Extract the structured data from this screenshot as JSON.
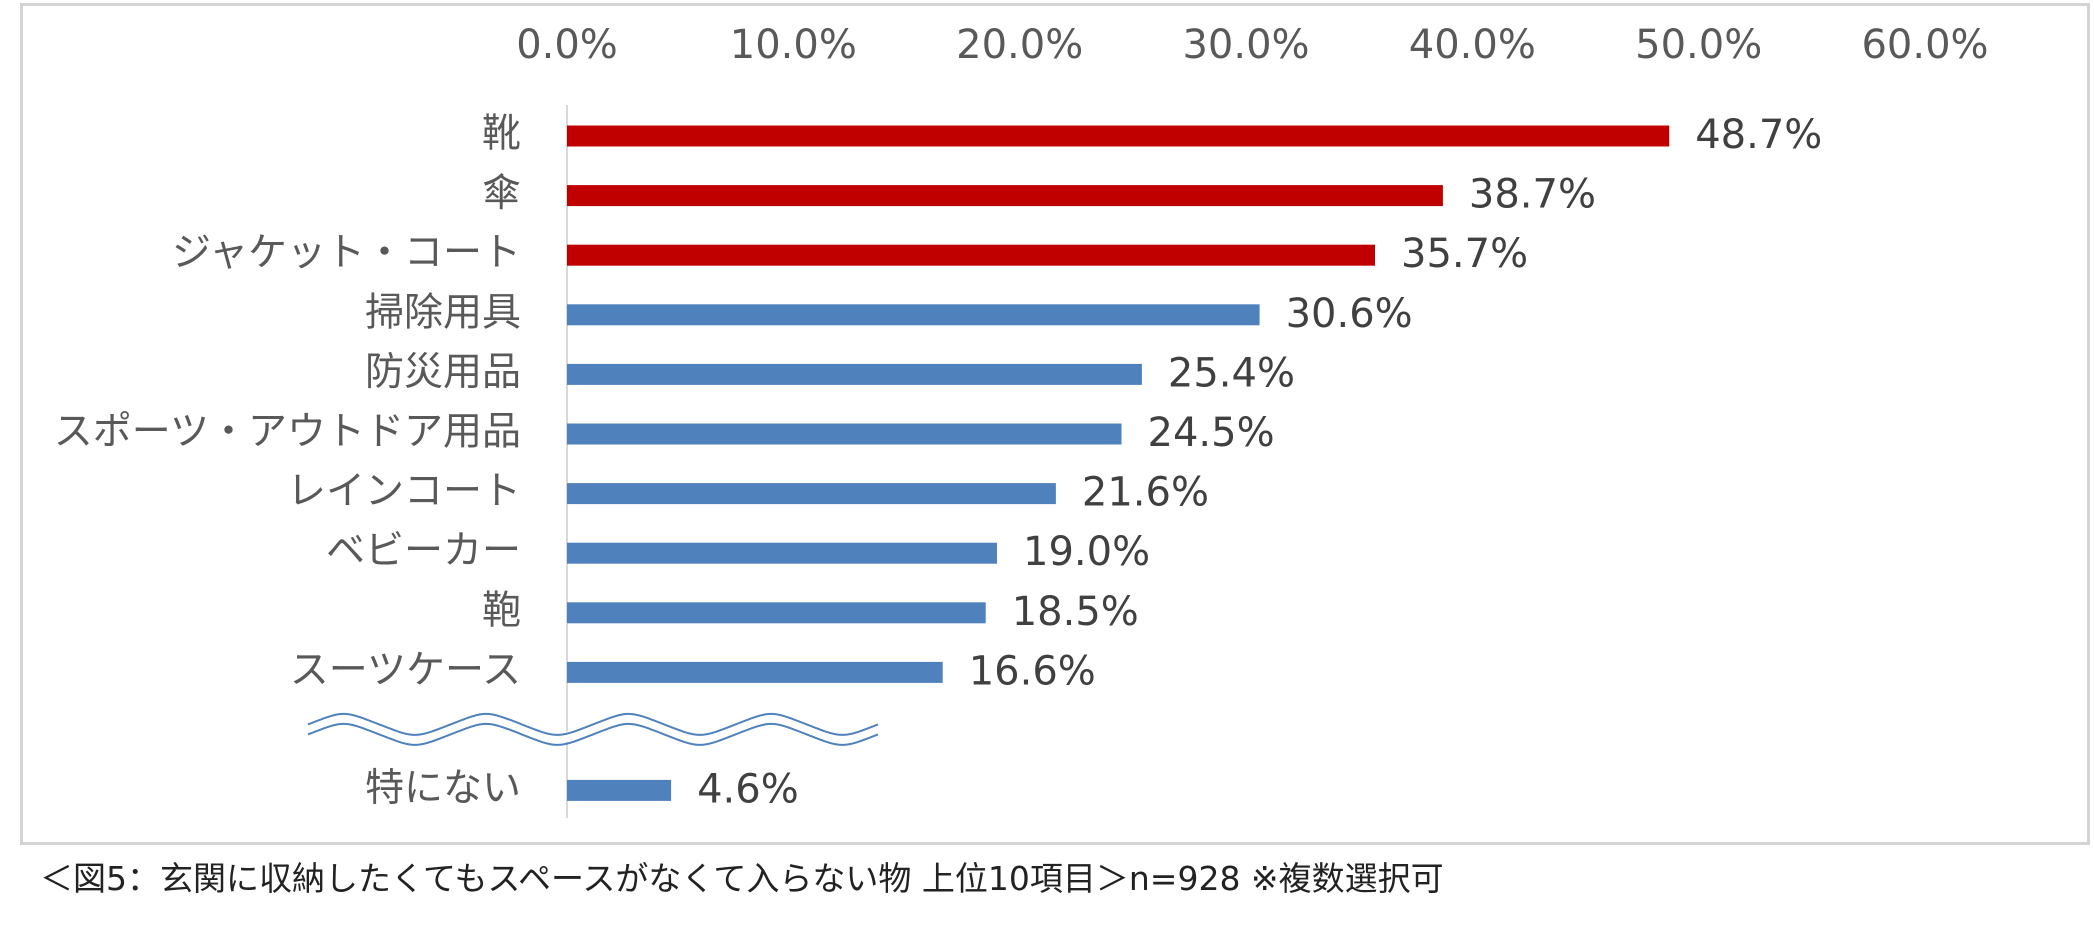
{
  "chart_data": {
    "type": "bar",
    "orientation": "horizontal",
    "x_ticks": [
      "0.0%",
      "10.0%",
      "20.0%",
      "30.0%",
      "40.0%",
      "50.0%",
      "60.0%"
    ],
    "xlim": [
      0,
      60
    ],
    "axis_position": "top",
    "categories": [
      "靴",
      "傘",
      "ジャケット・コート",
      "掃除用具",
      "防災用品",
      "スポーツ・アウトドア用品",
      "レインコート",
      "ベビーカー",
      "鞄",
      "スーツケース",
      "特にない"
    ],
    "values": [
      48.7,
      38.7,
      35.7,
      30.6,
      25.4,
      24.5,
      21.6,
      19.0,
      18.5,
      16.6,
      4.6
    ],
    "value_labels": [
      "48.7%",
      "38.7%",
      "35.7%",
      "30.6%",
      "25.4%",
      "24.5%",
      "21.6%",
      "19.0%",
      "18.5%",
      "16.6%",
      "4.6%"
    ],
    "highlighted_count": 3,
    "axis_break_after_index": 9,
    "colors": {
      "highlight": "#c00000",
      "normal": "#4f81bd",
      "axis": "#d9d9d9",
      "break_line": "#4f81bd"
    }
  },
  "caption": "＜図5：玄関に収納したくてもスペースがなくて入らない物 上位10項目＞n=928 ※複数選択可"
}
